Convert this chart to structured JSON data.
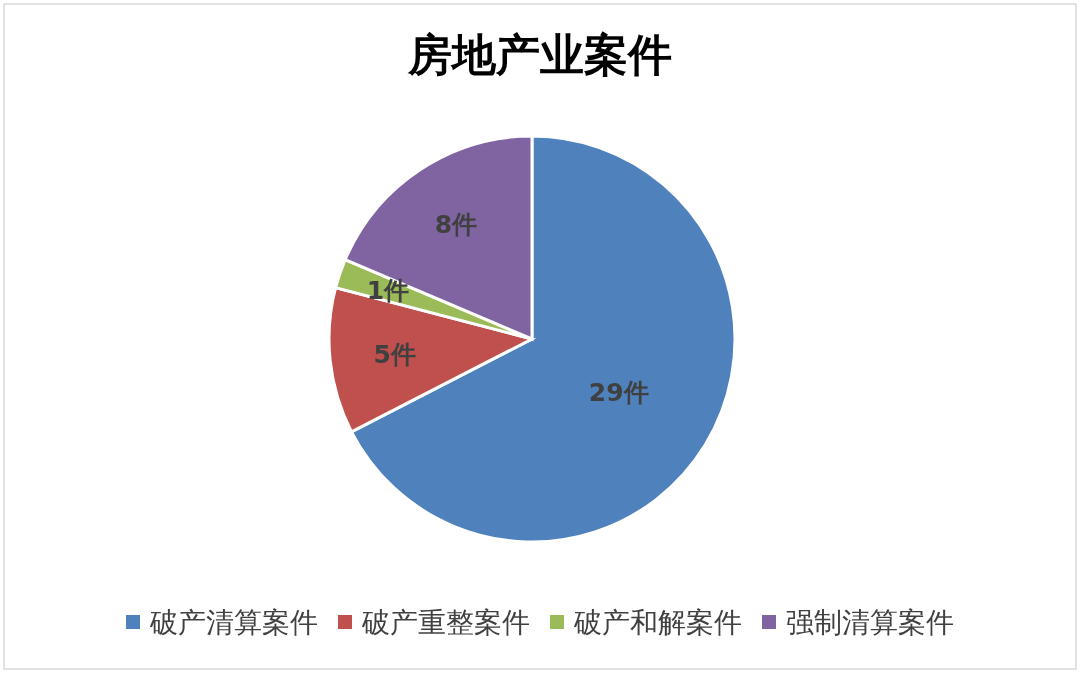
{
  "chart_data": {
    "type": "pie",
    "title": "房地产业案件",
    "categories": [
      "破产清算案件",
      "破产重整案件",
      "破产和解案件",
      "强制清算案件"
    ],
    "values": [
      29,
      5,
      1,
      8
    ],
    "colors": [
      "#4f81bd",
      "#c0504d",
      "#9bbb59",
      "#8064a2"
    ],
    "value_labels": [
      "29件",
      "5件",
      "1件",
      "8件"
    ],
    "legend": "bottom"
  }
}
